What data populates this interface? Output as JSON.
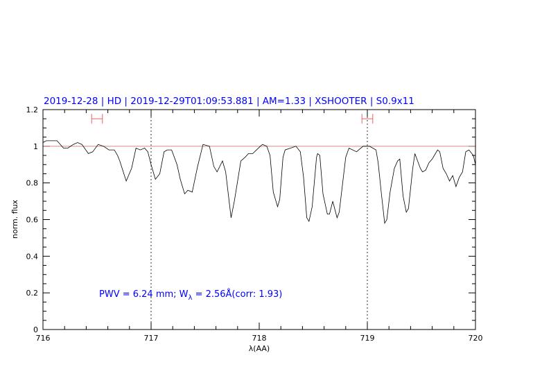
{
  "chart_data": {
    "type": "line",
    "title": "2019-12-28 | HD | 2019-12-29T01:09:53.881 | AM=1.33 | XSHOOTER | S0.9x11",
    "xlabel": "λ(AA)",
    "ylabel": "norm. flux",
    "xlim": [
      716,
      720
    ],
    "ylim": [
      0,
      1.2
    ],
    "xticks": [
      "716",
      "717",
      "718",
      "719",
      "720"
    ],
    "yticks": [
      "0",
      "0.2",
      "0.4",
      "0.6",
      "0.8",
      "1",
      "1.2"
    ],
    "grid": false,
    "reference_line_y": 1,
    "vertical_markers_x": [
      717,
      719
    ],
    "error_bar_markers": [
      {
        "x": [
          716.45,
          716.55
        ],
        "y": 1.15
      },
      {
        "x": [
          718.95,
          719.05
        ],
        "y": 1.15
      }
    ],
    "annotation": {
      "prefix": "PWV  =  6.24  mm;  W",
      "subscript": "λ",
      "suffix": "  =  2.56Å(corr:  1.93)"
    },
    "colors": {
      "title": "#0000ff",
      "annotation": "#0000ff",
      "marker": "#f06060",
      "reference": "#d88888",
      "line": "#000000"
    },
    "series": [
      {
        "x": [
          716.0,
          716.03,
          716.08,
          716.13,
          716.19,
          716.23,
          716.28,
          716.32,
          716.36,
          716.42,
          716.46,
          716.51,
          716.56,
          716.61,
          716.66,
          716.69,
          716.71,
          716.77,
          716.82,
          716.86,
          716.9,
          716.94,
          716.97,
          717.0,
          717.04,
          717.08,
          717.12,
          717.15,
          717.19,
          717.24,
          717.27,
          717.31,
          717.34,
          717.38,
          717.43,
          717.48,
          717.54,
          717.58,
          717.61,
          717.66,
          717.69,
          717.74,
          717.77,
          717.83,
          717.87,
          717.9,
          717.94,
          718.01,
          718.03,
          718.07,
          718.1,
          718.13,
          718.17,
          718.19,
          718.22,
          718.24,
          718.29,
          718.34,
          718.38,
          718.41,
          718.44,
          718.46,
          718.49,
          718.53,
          718.54,
          718.56,
          718.59,
          718.63,
          718.65,
          718.68,
          718.72,
          718.74,
          718.8,
          718.83,
          718.9,
          718.96,
          719.02,
          719.08,
          719.1,
          719.13,
          719.16,
          719.18,
          719.21,
          719.25,
          719.28,
          719.3,
          719.33,
          719.36,
          719.38,
          719.42,
          719.44,
          719.49,
          719.51,
          719.54,
          719.57,
          719.6,
          719.62,
          719.65,
          719.67,
          719.7,
          719.73,
          719.76,
          719.79,
          719.82,
          719.85,
          719.88,
          719.91,
          719.94,
          719.98,
          720.0
        ],
        "y": [
          1.02,
          1.03,
          1.03,
          1.03,
          0.99,
          0.99,
          1.01,
          1.02,
          1.01,
          0.96,
          0.97,
          1.01,
          1.0,
          0.98,
          0.98,
          0.95,
          0.92,
          0.81,
          0.88,
          0.99,
          0.98,
          0.99,
          0.97,
          0.9,
          0.82,
          0.85,
          0.97,
          0.98,
          0.98,
          0.9,
          0.82,
          0.74,
          0.76,
          0.75,
          0.89,
          1.01,
          1.0,
          0.89,
          0.86,
          0.92,
          0.86,
          0.61,
          0.7,
          0.92,
          0.94,
          0.96,
          0.96,
          1.0,
          1.01,
          1.0,
          0.95,
          0.75,
          0.67,
          0.71,
          0.94,
          0.98,
          0.99,
          1.0,
          0.97,
          0.83,
          0.61,
          0.59,
          0.67,
          0.94,
          0.96,
          0.95,
          0.74,
          0.63,
          0.63,
          0.7,
          0.61,
          0.64,
          0.94,
          0.99,
          0.97,
          1.0,
          1.0,
          0.98,
          0.91,
          0.74,
          0.58,
          0.6,
          0.75,
          0.88,
          0.92,
          0.93,
          0.73,
          0.64,
          0.66,
          0.88,
          0.96,
          0.88,
          0.86,
          0.87,
          0.91,
          0.93,
          0.95,
          0.98,
          0.97,
          0.88,
          0.85,
          0.81,
          0.84,
          0.78,
          0.83,
          0.86,
          0.97,
          0.98,
          0.95,
          0.9
        ]
      }
    ]
  }
}
